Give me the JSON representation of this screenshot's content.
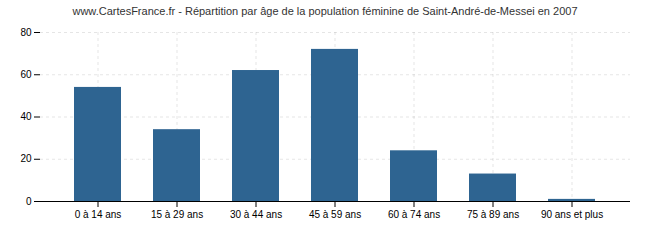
{
  "chart_data": {
    "type": "bar",
    "title": "www.CartesFrance.fr - Répartition par âge de la population féminine de Saint-André-de-Messei en 2007",
    "categories": [
      "0 à 14 ans",
      "15 à 29 ans",
      "30 à 44 ans",
      "45 à 59 ans",
      "60 à 74 ans",
      "75 à 89 ans",
      "90 ans et plus"
    ],
    "values": [
      54,
      34,
      62,
      72,
      24,
      13,
      1
    ],
    "color": "#2e6491",
    "ylim": [
      0,
      80
    ],
    "yticks": [
      0,
      20,
      40,
      60,
      80
    ],
    "grid": true
  }
}
